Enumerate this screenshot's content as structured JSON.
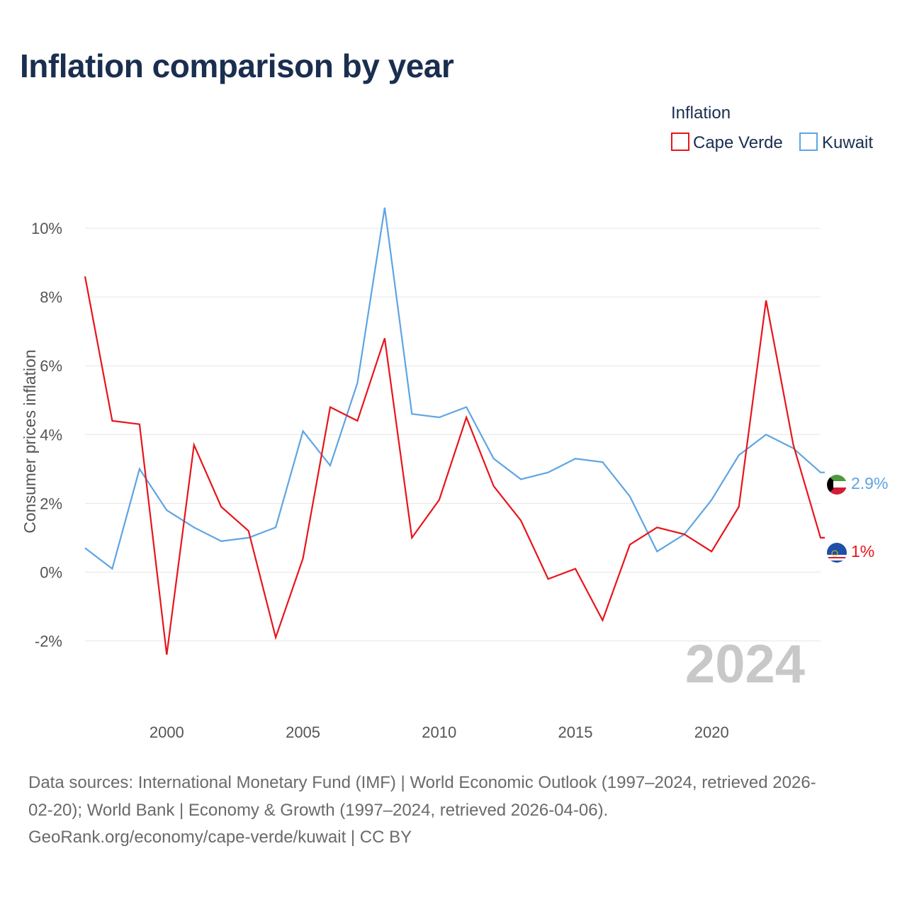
{
  "page": {
    "title": "Inflation comparison by year"
  },
  "colors": {
    "cape_verde": "#e8141b",
    "kuwait": "#5ea4e3",
    "grid": "#e6e6e6"
  },
  "chart_data": {
    "type": "line",
    "title": "Inflation comparison by year",
    "ylabel": "Consumer prices inflation",
    "xlabel": "",
    "xlim": [
      1997,
      2024
    ],
    "ylim": [
      -3,
      10.6
    ],
    "x_ticks": [
      2000,
      2005,
      2010,
      2015,
      2020
    ],
    "x_tick_labels": [
      "2000",
      "2005",
      "2010",
      "2015",
      "2020"
    ],
    "y_ticks": [
      -2,
      0,
      2,
      4,
      6,
      8,
      10
    ],
    "y_tick_labels": [
      "-2%",
      "0%",
      "2%",
      "4%",
      "6%",
      "8%",
      "10%"
    ],
    "legend": {
      "title": "Inflation",
      "position": "top-right"
    },
    "year_watermark": "2024",
    "x": [
      1997,
      1998,
      1999,
      2000,
      2001,
      2002,
      2003,
      2004,
      2005,
      2006,
      2007,
      2008,
      2009,
      2010,
      2011,
      2012,
      2013,
      2014,
      2015,
      2016,
      2017,
      2018,
      2019,
      2020,
      2021,
      2022,
      2023,
      2024
    ],
    "series": [
      {
        "name": "Cape Verde",
        "end_label": "1%",
        "values": [
          8.6,
          4.4,
          4.3,
          -2.4,
          3.7,
          1.9,
          1.2,
          -1.9,
          0.4,
          4.8,
          4.4,
          6.8,
          1.0,
          2.1,
          4.5,
          2.5,
          1.5,
          -0.2,
          0.1,
          -1.4,
          0.8,
          1.3,
          1.1,
          0.6,
          1.9,
          7.9,
          3.7,
          1.0
        ]
      },
      {
        "name": "Kuwait",
        "end_label": "2.9%",
        "values": [
          0.7,
          0.1,
          3.0,
          1.8,
          1.3,
          0.9,
          1.0,
          1.3,
          4.1,
          3.1,
          5.5,
          10.6,
          4.6,
          4.5,
          4.8,
          3.3,
          2.7,
          2.9,
          3.3,
          3.2,
          2.2,
          0.6,
          1.1,
          2.1,
          3.4,
          4.0,
          3.6,
          2.9
        ]
      }
    ]
  },
  "source": {
    "line1": "Data sources: International Monetary Fund (IMF) | World Economic Outlook (1997–2024, retrieved 2026-",
    "line2": "02-20); World Bank | Economy & Growth (1997–2024, retrieved 2026-04-06).",
    "line3": "GeoRank.org/economy/cape-verde/kuwait | CC BY"
  }
}
